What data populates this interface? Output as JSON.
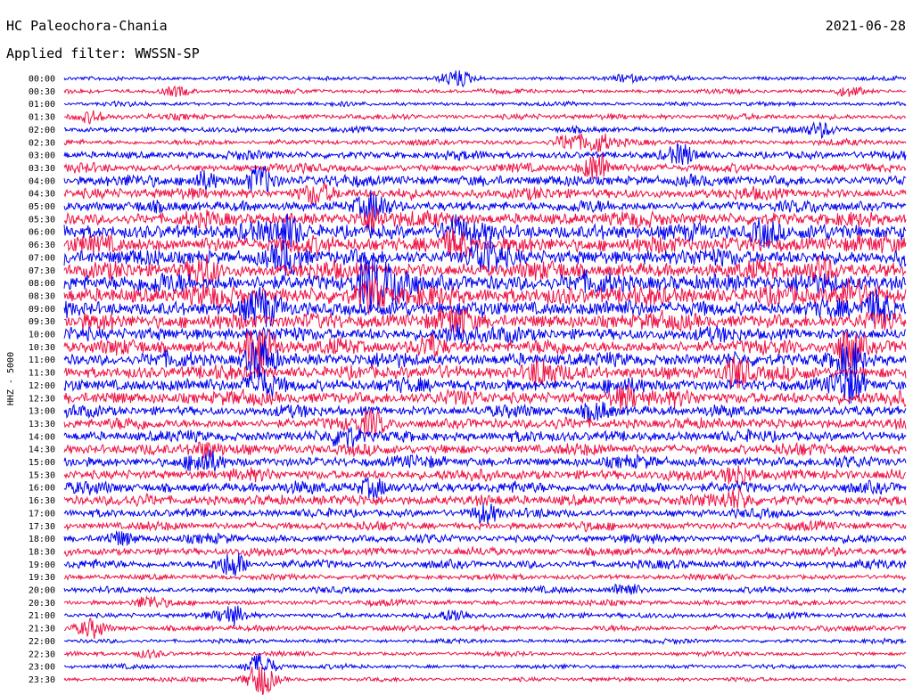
{
  "header": {
    "station": "HC Paleochora-Chania",
    "date": "2021-06-28",
    "filter": "Applied filter: WWSSN-SP"
  },
  "colors": {
    "even": "#0000ee",
    "odd": "#ee1144"
  },
  "chart_data": {
    "type": "line",
    "title": "HC Paleochora-Chania",
    "ylabel": "HHZ - 5000",
    "tick_labels": [
      "00:00",
      "00:30",
      "01:00",
      "01:30",
      "02:00",
      "02:30",
      "03:00",
      "03:30",
      "04:00",
      "04:30",
      "05:00",
      "05:30",
      "06:00",
      "06:30",
      "07:00",
      "07:30",
      "08:00",
      "08:30",
      "09:00",
      "09:30",
      "10:00",
      "10:30",
      "11:00",
      "11:30",
      "12:00",
      "12:30",
      "13:00",
      "13:30",
      "14:00",
      "14:30",
      "15:00",
      "15:30",
      "16:00",
      "16:30",
      "17:00",
      "17:30",
      "18:00",
      "18:30",
      "19:00",
      "19:30",
      "20:00",
      "20:30",
      "21:00",
      "21:30",
      "22:00",
      "22:30",
      "23:00",
      "23:30"
    ],
    "trace_minutes": 30,
    "noise_level": [
      1.5,
      1.5,
      1.5,
      2,
      2,
      2,
      3,
      3,
      4,
      4,
      4,
      5,
      6,
      6,
      6,
      6,
      7,
      7,
      6,
      6,
      5,
      5,
      5,
      5,
      5,
      5,
      4,
      4,
      4,
      4,
      4,
      4,
      4,
      4,
      3,
      3,
      3,
      3,
      3,
      2,
      2,
      2,
      2,
      2,
      1.5,
      1.5,
      1.5,
      1.5
    ],
    "events": [
      {
        "trace": 0,
        "minute": 14,
        "amp": 8
      },
      {
        "trace": 0,
        "minute": 20,
        "amp": 4
      },
      {
        "trace": 1,
        "minute": 4,
        "amp": 5
      },
      {
        "trace": 1,
        "minute": 28,
        "amp": 5
      },
      {
        "trace": 3,
        "minute": 1,
        "amp": 6
      },
      {
        "trace": 4,
        "minute": 27,
        "amp": 7
      },
      {
        "trace": 5,
        "minute": 18,
        "amp": 9
      },
      {
        "trace": 5,
        "minute": 19,
        "amp": 10
      },
      {
        "trace": 6,
        "minute": 22,
        "amp": 8
      },
      {
        "trace": 7,
        "minute": 19,
        "amp": 16
      },
      {
        "trace": 8,
        "minute": 7,
        "amp": 14
      },
      {
        "trace": 8,
        "minute": 5,
        "amp": 8
      },
      {
        "trace": 9,
        "minute": 9,
        "amp": 8
      },
      {
        "trace": 10,
        "minute": 11,
        "amp": 12
      },
      {
        "trace": 11,
        "minute": 11,
        "amp": 12
      },
      {
        "trace": 12,
        "minute": 8,
        "amp": 14
      },
      {
        "trace": 12,
        "minute": 14,
        "amp": 10
      },
      {
        "trace": 12,
        "minute": 25,
        "amp": 12
      },
      {
        "trace": 13,
        "minute": 14,
        "amp": 12
      },
      {
        "trace": 14,
        "minute": 8,
        "amp": 14
      },
      {
        "trace": 14,
        "minute": 15,
        "amp": 16
      },
      {
        "trace": 15,
        "minute": 5,
        "amp": 12
      },
      {
        "trace": 15,
        "minute": 27,
        "amp": 12
      },
      {
        "trace": 16,
        "minute": 11,
        "amp": 22
      },
      {
        "trace": 16,
        "minute": 12,
        "amp": 18
      },
      {
        "trace": 17,
        "minute": 11,
        "amp": 14
      },
      {
        "trace": 17,
        "minute": 28,
        "amp": 12
      },
      {
        "trace": 18,
        "minute": 7,
        "amp": 16
      },
      {
        "trace": 18,
        "minute": 29,
        "amp": 16
      },
      {
        "trace": 19,
        "minute": 14,
        "amp": 10
      },
      {
        "trace": 20,
        "minute": 14,
        "amp": 12
      },
      {
        "trace": 21,
        "minute": 7,
        "amp": 28
      },
      {
        "trace": 21,
        "minute": 13,
        "amp": 12
      },
      {
        "trace": 21,
        "minute": 28,
        "amp": 22
      },
      {
        "trace": 22,
        "minute": 7,
        "amp": 22
      },
      {
        "trace": 22,
        "minute": 28,
        "amp": 18
      },
      {
        "trace": 23,
        "minute": 17,
        "amp": 14
      },
      {
        "trace": 23,
        "minute": 24,
        "amp": 16
      },
      {
        "trace": 24,
        "minute": 7,
        "amp": 14
      },
      {
        "trace": 24,
        "minute": 28,
        "amp": 14
      },
      {
        "trace": 25,
        "minute": 20,
        "amp": 10
      },
      {
        "trace": 26,
        "minute": 19,
        "amp": 9
      },
      {
        "trace": 27,
        "minute": 11,
        "amp": 12
      },
      {
        "trace": 28,
        "minute": 10,
        "amp": 12
      },
      {
        "trace": 29,
        "minute": 5,
        "amp": 7
      },
      {
        "trace": 30,
        "minute": 5,
        "amp": 9
      },
      {
        "trace": 31,
        "minute": 24,
        "amp": 10
      },
      {
        "trace": 32,
        "minute": 11,
        "amp": 9
      },
      {
        "trace": 33,
        "minute": 24,
        "amp": 9
      },
      {
        "trace": 34,
        "minute": 15,
        "amp": 10
      },
      {
        "trace": 36,
        "minute": 2,
        "amp": 7
      },
      {
        "trace": 38,
        "minute": 6,
        "amp": 12
      },
      {
        "trace": 40,
        "minute": 20,
        "amp": 8
      },
      {
        "trace": 41,
        "minute": 3,
        "amp": 6
      },
      {
        "trace": 42,
        "minute": 6,
        "amp": 9
      },
      {
        "trace": 42,
        "minute": 14,
        "amp": 6
      },
      {
        "trace": 43,
        "minute": 1,
        "amp": 10
      },
      {
        "trace": 45,
        "minute": 3,
        "amp": 4
      },
      {
        "trace": 46,
        "minute": 7,
        "amp": 14
      },
      {
        "trace": 47,
        "minute": 7,
        "amp": 18
      }
    ]
  }
}
